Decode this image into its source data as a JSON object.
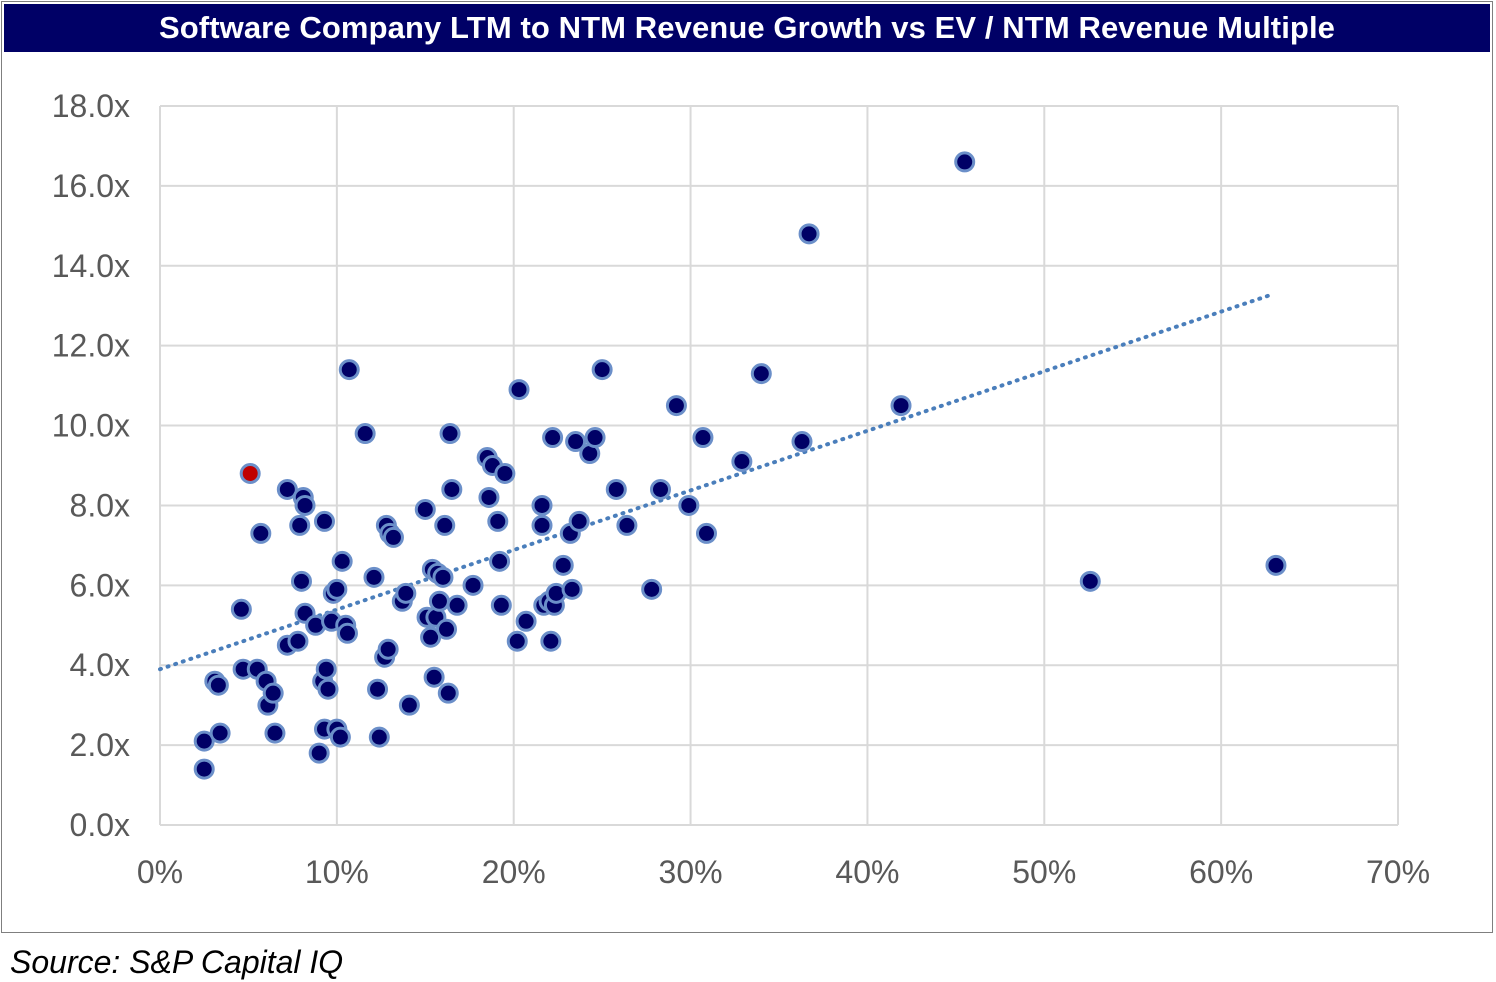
{
  "title": "Software Company LTM to NTM Revenue Growth vs EV / NTM Revenue Multiple",
  "source": "Source: S&P Capital IQ",
  "colors": {
    "title_bg": "#000066",
    "point_fill": "#000066",
    "point_stroke": "#6b8fc9",
    "highlight_fill": "#c00000",
    "trendline": "#4a7ebb",
    "grid": "#d9d9d9"
  },
  "chart_data": {
    "type": "scatter",
    "title": "Software Company LTM to NTM Revenue Growth vs EV / NTM Revenue Multiple",
    "xlabel": "",
    "ylabel": "",
    "xlim": [
      0,
      0.7
    ],
    "ylim": [
      0,
      18
    ],
    "x_ticks": [
      0,
      0.1,
      0.2,
      0.3,
      0.4,
      0.5,
      0.6,
      0.7
    ],
    "x_tick_labels": [
      "0%",
      "10%",
      "20%",
      "30%",
      "40%",
      "50%",
      "60%",
      "70%"
    ],
    "y_ticks": [
      0,
      2,
      4,
      6,
      8,
      10,
      12,
      14,
      16,
      18
    ],
    "y_tick_labels": [
      "0.0x",
      "2.0x",
      "4.0x",
      "6.0x",
      "8.0x",
      "10.0x",
      "12.0x",
      "14.0x",
      "16.0x",
      "18.0x"
    ],
    "grid": true,
    "legend": "none",
    "trendline": {
      "type": "linear",
      "x": [
        0.0,
        0.63
      ],
      "y": [
        3.9,
        13.3
      ]
    },
    "highlight": {
      "x": 0.051,
      "y": 8.8
    },
    "points": [
      [
        0.025,
        2.1
      ],
      [
        0.025,
        1.4
      ],
      [
        0.031,
        3.6
      ],
      [
        0.033,
        3.5
      ],
      [
        0.034,
        2.3
      ],
      [
        0.046,
        5.4
      ],
      [
        0.047,
        3.9
      ],
      [
        0.055,
        3.9
      ],
      [
        0.057,
        7.3
      ],
      [
        0.06,
        3.6
      ],
      [
        0.061,
        3.0
      ],
      [
        0.064,
        3.3
      ],
      [
        0.065,
        2.3
      ],
      [
        0.072,
        8.4
      ],
      [
        0.072,
        4.5
      ],
      [
        0.078,
        4.6
      ],
      [
        0.079,
        7.5
      ],
      [
        0.08,
        6.1
      ],
      [
        0.081,
        8.2
      ],
      [
        0.082,
        8.0
      ],
      [
        0.082,
        5.3
      ],
      [
        0.088,
        5.0
      ],
      [
        0.09,
        1.8
      ],
      [
        0.092,
        3.6
      ],
      [
        0.093,
        2.4
      ],
      [
        0.093,
        7.6
      ],
      [
        0.094,
        3.9
      ],
      [
        0.095,
        3.4
      ],
      [
        0.097,
        5.1
      ],
      [
        0.098,
        5.8
      ],
      [
        0.1,
        5.9
      ],
      [
        0.1,
        2.4
      ],
      [
        0.102,
        2.2
      ],
      [
        0.103,
        6.6
      ],
      [
        0.105,
        5.0
      ],
      [
        0.106,
        4.8
      ],
      [
        0.107,
        11.4
      ],
      [
        0.116,
        9.8
      ],
      [
        0.121,
        6.2
      ],
      [
        0.123,
        3.4
      ],
      [
        0.124,
        2.2
      ],
      [
        0.127,
        4.2
      ],
      [
        0.128,
        7.5
      ],
      [
        0.129,
        4.4
      ],
      [
        0.13,
        7.3
      ],
      [
        0.132,
        7.2
      ],
      [
        0.137,
        5.6
      ],
      [
        0.139,
        5.8
      ],
      [
        0.141,
        3.0
      ],
      [
        0.15,
        7.9
      ],
      [
        0.151,
        5.2
      ],
      [
        0.153,
        4.7
      ],
      [
        0.154,
        6.4
      ],
      [
        0.155,
        3.7
      ],
      [
        0.156,
        5.2
      ],
      [
        0.157,
        6.3
      ],
      [
        0.158,
        5.6
      ],
      [
        0.16,
        6.2
      ],
      [
        0.161,
        7.5
      ],
      [
        0.162,
        4.9
      ],
      [
        0.163,
        3.3
      ],
      [
        0.164,
        9.8
      ],
      [
        0.165,
        8.4
      ],
      [
        0.168,
        5.5
      ],
      [
        0.177,
        6.0
      ],
      [
        0.185,
        9.2
      ],
      [
        0.186,
        8.2
      ],
      [
        0.188,
        9.0
      ],
      [
        0.191,
        7.6
      ],
      [
        0.192,
        6.6
      ],
      [
        0.193,
        5.5
      ],
      [
        0.195,
        8.8
      ],
      [
        0.202,
        4.6
      ],
      [
        0.203,
        10.9
      ],
      [
        0.207,
        5.1
      ],
      [
        0.216,
        8.0
      ],
      [
        0.216,
        7.5
      ],
      [
        0.217,
        5.5
      ],
      [
        0.22,
        5.6
      ],
      [
        0.221,
        4.6
      ],
      [
        0.222,
        9.7
      ],
      [
        0.223,
        5.5
      ],
      [
        0.224,
        5.8
      ],
      [
        0.228,
        6.5
      ],
      [
        0.232,
        7.3
      ],
      [
        0.233,
        5.9
      ],
      [
        0.235,
        9.6
      ],
      [
        0.237,
        7.6
      ],
      [
        0.243,
        9.3
      ],
      [
        0.246,
        9.7
      ],
      [
        0.25,
        11.4
      ],
      [
        0.258,
        8.4
      ],
      [
        0.264,
        7.5
      ],
      [
        0.278,
        5.9
      ],
      [
        0.283,
        8.4
      ],
      [
        0.292,
        10.5
      ],
      [
        0.299,
        8.0
      ],
      [
        0.307,
        9.7
      ],
      [
        0.309,
        7.3
      ],
      [
        0.329,
        9.1
      ],
      [
        0.34,
        11.3
      ],
      [
        0.363,
        9.6
      ],
      [
        0.367,
        14.8
      ],
      [
        0.419,
        10.5
      ],
      [
        0.455,
        16.6
      ],
      [
        0.526,
        6.1
      ],
      [
        0.631,
        6.5
      ]
    ]
  }
}
